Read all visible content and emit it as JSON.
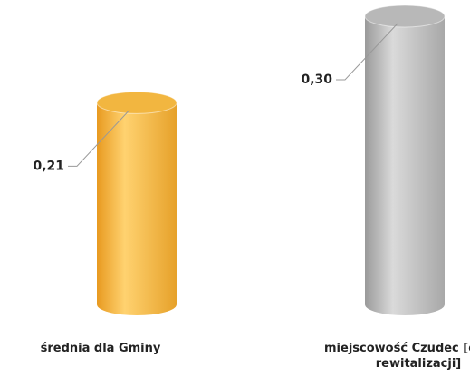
{
  "chart_data": {
    "type": "bar",
    "categories": [
      "średnia dla Gminy",
      "miejscowość Czudec [obszar rewitalizacji]"
    ],
    "series": [
      {
        "name": null,
        "colors": [
          "#f2b640",
          "#b8b8b8"
        ],
        "values": [
          0.21,
          0.3
        ],
        "value_labels": [
          "0,21",
          "0,30"
        ]
      }
    ]
  }
}
